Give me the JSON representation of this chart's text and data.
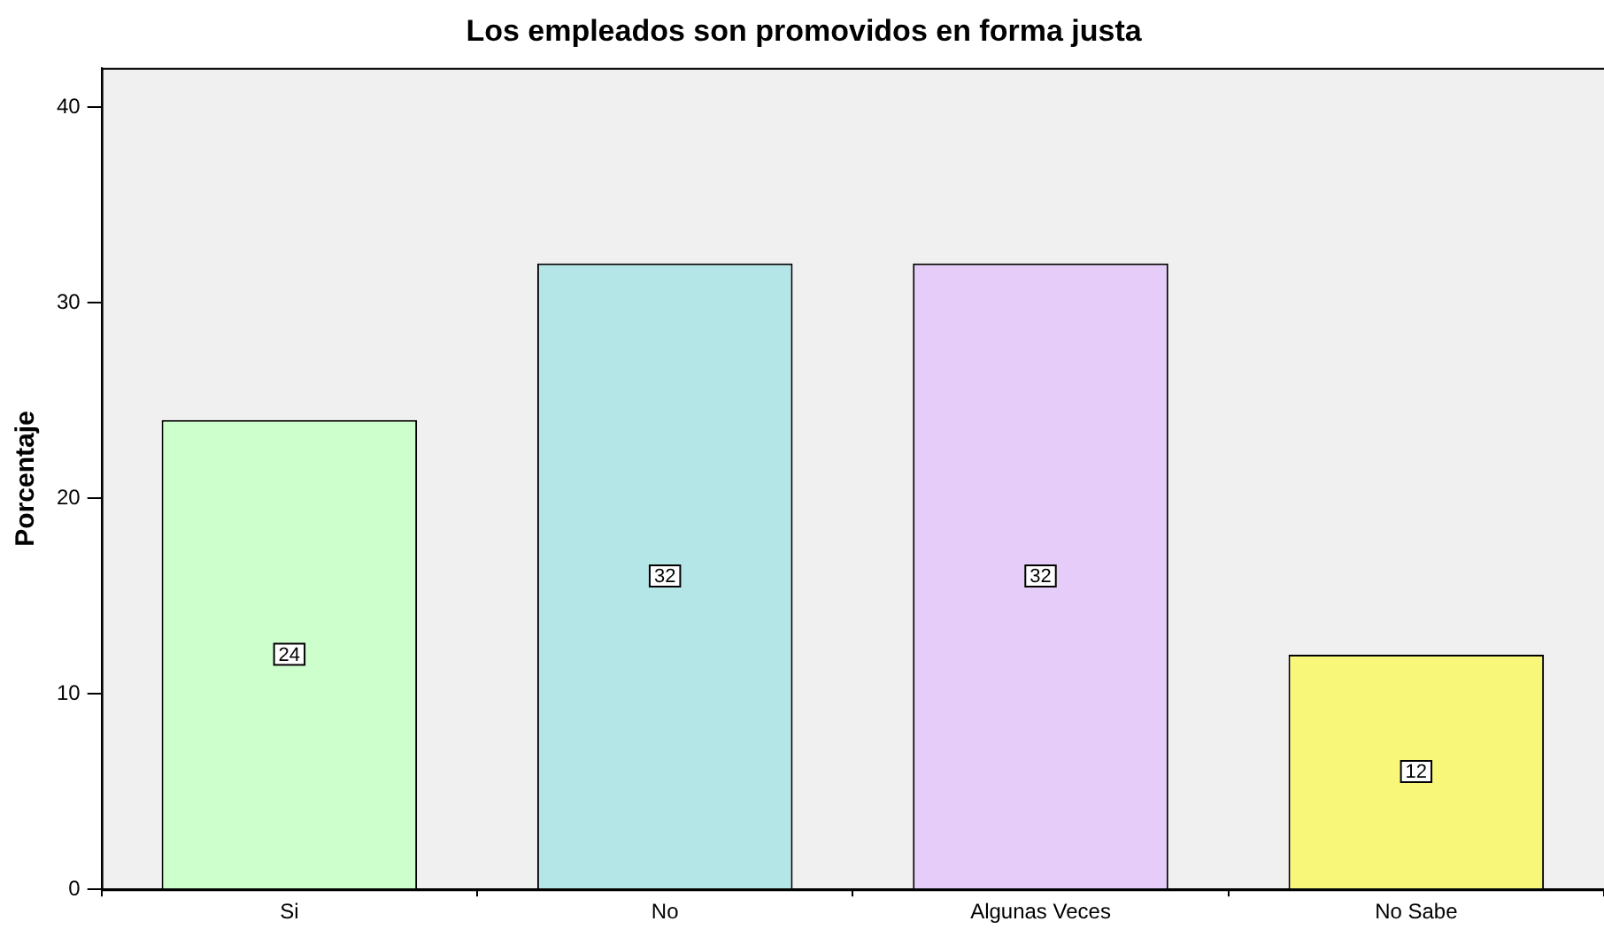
{
  "chart_data": {
    "type": "bar",
    "title": "Los empleados son promovidos en forma justa",
    "ylabel": "Porcentaje",
    "categories": [
      "Si",
      "No",
      "Algunas Veces",
      "No Sabe"
    ],
    "values": [
      24,
      32,
      32,
      12
    ],
    "colors": [
      "#ccffcc",
      "#b4e6e8",
      "#e6ccf8",
      "#f8f77a"
    ],
    "ylim": [
      0,
      42
    ],
    "yticks": [
      0,
      10,
      20,
      30,
      40
    ],
    "grid": false,
    "legend": false,
    "data_labels": true
  }
}
